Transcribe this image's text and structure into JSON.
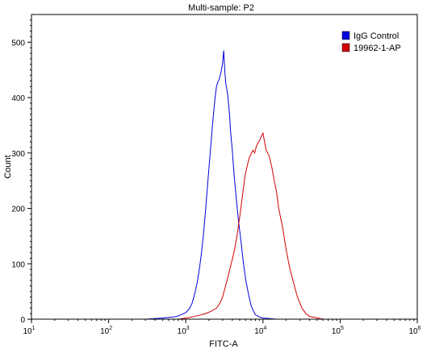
{
  "chart_data": {
    "type": "line",
    "title": "Multi-sample: P2",
    "xlabel": "FITC-A",
    "ylabel": "Count",
    "x_scale": "log",
    "xlim": [
      10,
      1000000
    ],
    "ylim": [
      0,
      550
    ],
    "grid": false,
    "legend_placement": "top-right",
    "x_ticks": [
      {
        "value": 10,
        "base": "10",
        "exp": "1"
      },
      {
        "value": 100,
        "base": "10",
        "exp": "2"
      },
      {
        "value": 1000,
        "base": "10",
        "exp": "3"
      },
      {
        "value": 10000,
        "base": "10",
        "exp": "4"
      },
      {
        "value": 100000,
        "base": "10",
        "exp": "5"
      },
      {
        "value": 1000000,
        "base": "10",
        "exp": "6"
      }
    ],
    "y_ticks": [
      0,
      100,
      200,
      300,
      400,
      500
    ],
    "series": [
      {
        "name": "IgG Control",
        "color": "#0000e0",
        "points": [
          [
            10,
            0
          ],
          [
            300,
            0
          ],
          [
            400,
            1
          ],
          [
            500,
            2
          ],
          [
            600,
            3
          ],
          [
            700,
            4
          ],
          [
            800,
            6
          ],
          [
            900,
            9
          ],
          [
            1000,
            12
          ],
          [
            1100,
            18
          ],
          [
            1200,
            28
          ],
          [
            1300,
            45
          ],
          [
            1400,
            65
          ],
          [
            1500,
            90
          ],
          [
            1600,
            120
          ],
          [
            1700,
            155
          ],
          [
            1800,
            195
          ],
          [
            1900,
            235
          ],
          [
            2000,
            275
          ],
          [
            2100,
            310
          ],
          [
            2200,
            345
          ],
          [
            2300,
            375
          ],
          [
            2400,
            400
          ],
          [
            2500,
            420
          ],
          [
            2600,
            428
          ],
          [
            2700,
            432
          ],
          [
            2800,
            440
          ],
          [
            2900,
            450
          ],
          [
            3000,
            462
          ],
          [
            3100,
            485
          ],
          [
            3200,
            448
          ],
          [
            3300,
            425
          ],
          [
            3400,
            415
          ],
          [
            3500,
            405
          ],
          [
            3600,
            385
          ],
          [
            3700,
            368
          ],
          [
            3800,
            340
          ],
          [
            4000,
            305
          ],
          [
            4200,
            265
          ],
          [
            4500,
            220
          ],
          [
            4800,
            180
          ],
          [
            5200,
            140
          ],
          [
            5600,
            100
          ],
          [
            6000,
            70
          ],
          [
            6500,
            45
          ],
          [
            7000,
            25
          ],
          [
            7500,
            15
          ],
          [
            8000,
            8
          ],
          [
            9000,
            4
          ],
          [
            10000,
            2
          ],
          [
            12000,
            1
          ],
          [
            15000,
            0
          ],
          [
            1000000,
            0
          ]
        ]
      },
      {
        "name": "19962-1-AP",
        "color": "#d00000",
        "points": [
          [
            10,
            0
          ],
          [
            800,
            0
          ],
          [
            1000,
            2
          ],
          [
            1200,
            4
          ],
          [
            1500,
            7
          ],
          [
            1800,
            10
          ],
          [
            2100,
            14
          ],
          [
            2500,
            20
          ],
          [
            2800,
            30
          ],
          [
            3000,
            40
          ],
          [
            3200,
            55
          ],
          [
            3500,
            75
          ],
          [
            3800,
            95
          ],
          [
            4200,
            120
          ],
          [
            4600,
            150
          ],
          [
            5000,
            185
          ],
          [
            5400,
            220
          ],
          [
            5800,
            255
          ],
          [
            6200,
            275
          ],
          [
            6600,
            290
          ],
          [
            7000,
            298
          ],
          [
            7400,
            305
          ],
          [
            7800,
            300
          ],
          [
            8200,
            312
          ],
          [
            8600,
            318
          ],
          [
            9000,
            322
          ],
          [
            9500,
            330
          ],
          [
            10000,
            336
          ],
          [
            10500,
            320
          ],
          [
            11000,
            305
          ],
          [
            11500,
            300
          ],
          [
            12000,
            295
          ],
          [
            13000,
            275
          ],
          [
            14000,
            250
          ],
          [
            15000,
            230
          ],
          [
            16000,
            200
          ],
          [
            18000,
            165
          ],
          [
            20000,
            125
          ],
          [
            22000,
            95
          ],
          [
            25000,
            65
          ],
          [
            28000,
            40
          ],
          [
            32000,
            20
          ],
          [
            36000,
            10
          ],
          [
            40000,
            5
          ],
          [
            48000,
            3
          ],
          [
            55000,
            1
          ],
          [
            60000,
            0
          ],
          [
            1000000,
            0
          ]
        ]
      }
    ]
  }
}
